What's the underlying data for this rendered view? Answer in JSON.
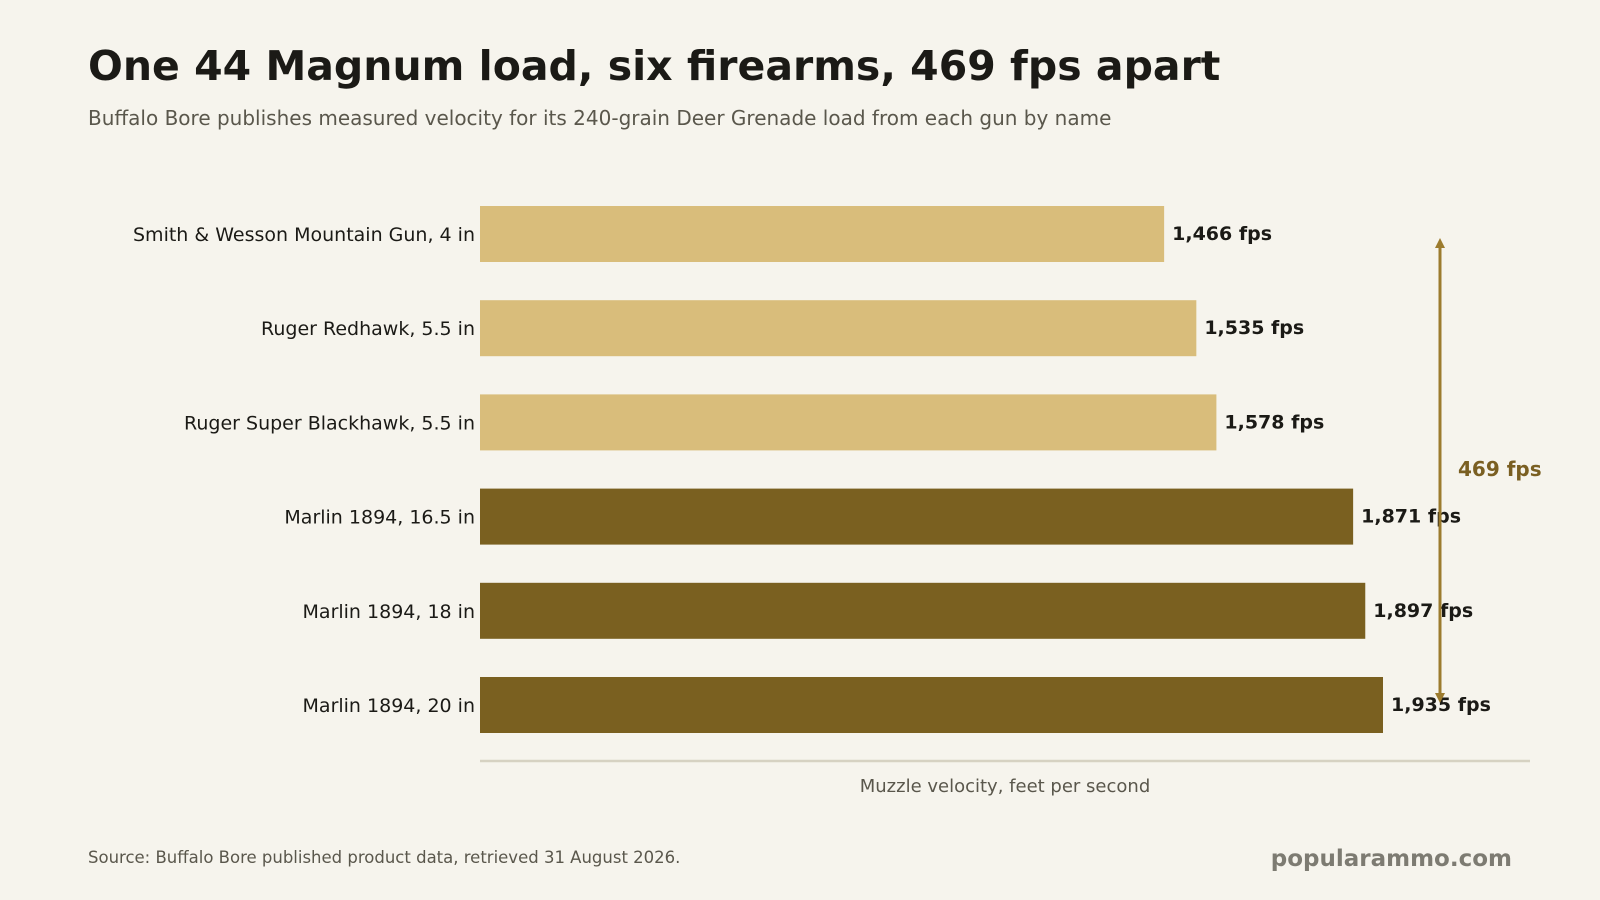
{
  "header": {
    "title": "One 44 Magnum load, six firearms, 469 fps apart",
    "subtitle": "Buffalo Bore publishes measured velocity for its 240-grain Deer Grenade load from each gun by name"
  },
  "footer": {
    "source": "Source: Buffalo Bore published product data, retrieved 31 August 2026.",
    "brand": "popularammo.com"
  },
  "chart_data": {
    "type": "bar",
    "orientation": "horizontal",
    "categories": [
      "Smith & Wesson Mountain Gun, 4 in",
      "Ruger Redhawk, 5.5 in",
      "Ruger Super Blackhawk, 5.5 in",
      "Marlin 1894, 16.5 in",
      "Marlin 1894, 18 in",
      "Marlin 1894, 20 in"
    ],
    "values": [
      1466,
      1535,
      1578,
      1871,
      1897,
      1935
    ],
    "value_labels": [
      "1,466 fps",
      "1,535 fps",
      "1,578 fps",
      "1,871 fps",
      "1,897 fps",
      "1,935 fps"
    ],
    "groups": [
      "handgun",
      "handgun",
      "handgun",
      "rifle",
      "rifle",
      "rifle"
    ],
    "colors": {
      "handgun": "#d9bd7b",
      "rifle": "#7a6020",
      "annotation": "#9c7b2e",
      "annotation_text": "#7a5f22"
    },
    "xlabel": "Muzzle velocity, feet per second",
    "xlim": [
      0,
      2250
    ],
    "grid": false,
    "annotation": {
      "text": "469 fps",
      "from": 1466,
      "to": 1935
    }
  }
}
